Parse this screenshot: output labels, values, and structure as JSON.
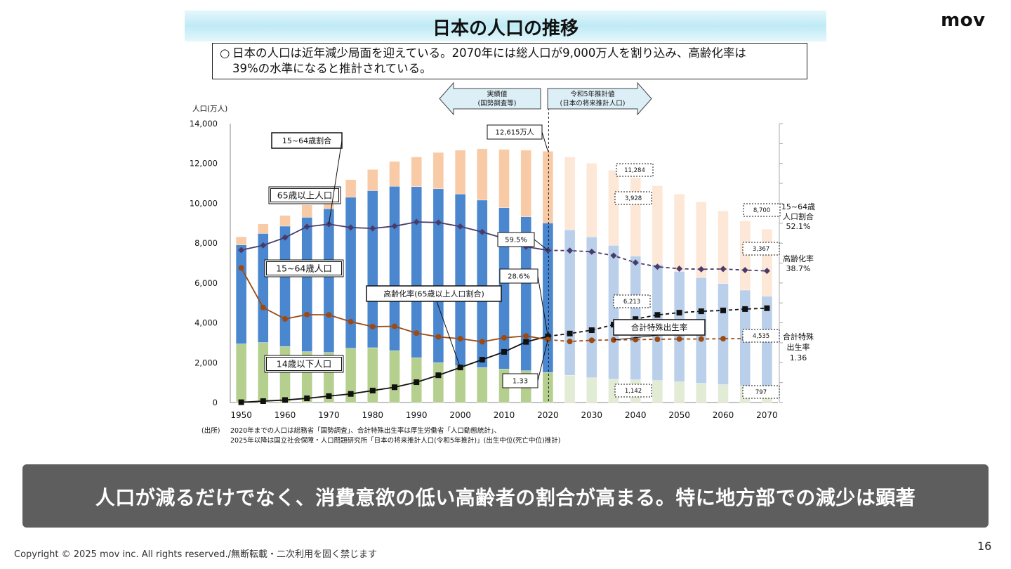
{
  "logo": "mov",
  "title": "日本の人口の推移",
  "summary": {
    "mark": "○",
    "line1": "日本の人口は近年減少局面を迎えている。2070年には総人口が9,000万人を割り込み、高齢化率は",
    "line2": "39%の水準になると推計されている。"
  },
  "chart_data": {
    "type": "bar",
    "stacked": true,
    "y_unit_label": "人口(万人)",
    "ylim": [
      0,
      14000
    ],
    "y_ticks": [
      "0",
      "2,000",
      "4,000",
      "6,000",
      "8,000",
      "10,000",
      "12,000",
      "14,000"
    ],
    "x_tick_labels": [
      "1950",
      "1960",
      "1970",
      "1980",
      "1990",
      "2000",
      "2010",
      "2020",
      "2030",
      "2040",
      "2050",
      "2060",
      "2070"
    ],
    "years": [
      1950,
      1955,
      1960,
      1965,
      1970,
      1975,
      1980,
      1985,
      1990,
      1995,
      2000,
      2005,
      2010,
      2015,
      2020,
      2025,
      2030,
      2035,
      2040,
      2045,
      2050,
      2055,
      2060,
      2065,
      2070
    ],
    "series": [
      {
        "key": "young",
        "values": [
          2943,
          3012,
          2807,
          2553,
          2515,
          2722,
          2751,
          2603,
          2249,
          2001,
          1847,
          1752,
          1680,
          1595,
          1503,
          1363,
          1240,
          1169,
          1142,
          1103,
          1041,
          966,
          897,
          836,
          797
        ]
      },
      {
        "key": "working",
        "values": [
          4966,
          5473,
          6047,
          6744,
          7212,
          7581,
          7883,
          8251,
          8590,
          8726,
          8622,
          8409,
          8103,
          7728,
          7509,
          7310,
          7076,
          6722,
          6213,
          5832,
          5540,
          5307,
          5078,
          4809,
          4535
        ]
      },
      {
        "key": "elderly",
        "values": [
          411,
          479,
          540,
          624,
          739,
          887,
          1065,
          1247,
          1489,
          1826,
          2204,
          2576,
          2925,
          3347,
          3603,
          3653,
          3696,
          3773,
          3928,
          3945,
          3888,
          3798,
          3644,
          3481,
          3367
        ]
      }
    ],
    "ratio_15_64_pct": [
      59.6,
      61.3,
      64.1,
      68.0,
      68.9,
      67.7,
      67.4,
      68.2,
      69.7,
      69.5,
      68.1,
      66.1,
      63.8,
      60.8,
      59.5,
      59.4,
      59.0,
      57.6,
      55.1,
      53.6,
      52.9,
      52.7,
      52.8,
      52.4,
      52.1
    ],
    "aging_rate_pct": [
      4.9,
      5.3,
      5.7,
      6.3,
      7.1,
      7.9,
      9.1,
      10.3,
      12.1,
      14.6,
      17.4,
      20.2,
      23.0,
      26.6,
      28.6,
      29.6,
      30.8,
      32.8,
      34.8,
      36.3,
      37.1,
      37.6,
      37.9,
      38.4,
      38.7
    ],
    "tfr": [
      3.65,
      2.37,
      2.0,
      2.14,
      2.13,
      1.91,
      1.75,
      1.76,
      1.54,
      1.42,
      1.36,
      1.26,
      1.39,
      1.45,
      1.33,
      1.27,
      1.31,
      1.32,
      1.33,
      1.34,
      1.35,
      1.35,
      1.36,
      1.36,
      1.36
    ],
    "projection_start": 2025,
    "labels": {
      "actual": "実績値",
      "actual_sub": "(国勢調査等)",
      "proj": "令和5年推計値",
      "proj_sub": "(日本の将来推計人口)",
      "total_2020": "12,615万人",
      "ratio_name": "15~64歳割合",
      "elderly_name": "65歳以上人口",
      "working_name": "15~64歳人口",
      "young_name": "14歳以下人口",
      "aging_name": "高齢化率(65歳以上人口割合)",
      "tfr_name": "合計特殊出生率",
      "ratio_2020": "59.5%",
      "aging_2020": "28.6%",
      "tfr_2020": "1.33",
      "total_2040": "11,284",
      "elderly_2040": "3,928",
      "working_2040": "6,213",
      "young_2040": "1,142",
      "total_2070": "8,700",
      "elderly_2070": "3,367",
      "working_2070": "4,535",
      "young_2070": "797",
      "r_ratio_1": "15~64歳",
      "r_ratio_2": "人口割合",
      "r_ratio_3": "52.1%",
      "r_aging_1": "高齢化率",
      "r_aging_2": "38.7%",
      "r_tfr_1": "合計特殊",
      "r_tfr_2": "出生率",
      "r_tfr_3": "1.36"
    },
    "source_label": "(出所)",
    "source_line1": "2020年までの人口は総務省「国勢調査」、合計特殊出生率は厚生労働省「人口動態統計」、",
    "source_line2": "2025年以降は国立社会保障・人口問題研究所「日本の将来推計人口(令和5年推計)」(出生中位(死亡中位)推計)",
    "colors": {
      "young": "#b5cf8e",
      "working": "#4a87cf",
      "elderly": "#f8cba6",
      "young_proj": "#e2ecd5",
      "working_proj": "#b9cfea",
      "elderly_proj": "#fde7d6",
      "ratio_line": "#4a3a6a",
      "aging_line": "#111111",
      "tfr_line": "#9c4a12"
    }
  },
  "banner": "人口が減るだけでなく、消費意欲の低い高齢者の割合が高まる。特に地方部での減少は顕著",
  "copyright": "Copyright © 2025 mov inc. All rights reserved./無断転載・二次利用を固く禁じます",
  "page_number": "16"
}
